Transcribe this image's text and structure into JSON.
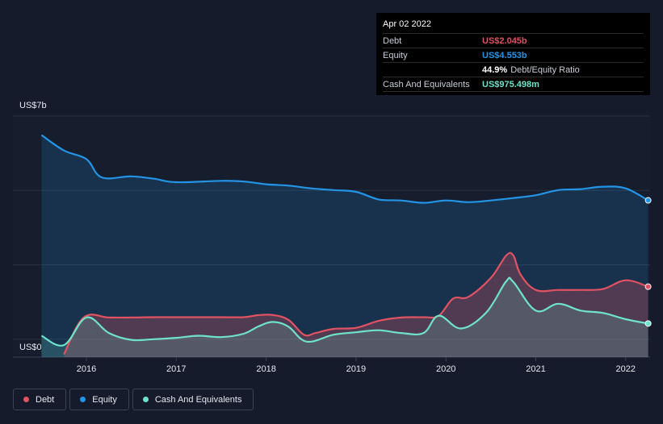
{
  "tooltip": {
    "date": "Apr 02 2022",
    "debt_label": "Debt",
    "debt_value": "US$2.045b",
    "equity_label": "Equity",
    "equity_value": "US$4.553b",
    "ratio_value": "44.9%",
    "ratio_label": "Debt/Equity Ratio",
    "cash_label": "Cash And Equivalents",
    "cash_value": "US$975.498m"
  },
  "colors": {
    "debt": "#e15362",
    "equity": "#2394e6",
    "cash": "#6ee3c9",
    "background": "#151b2b",
    "grid": "#2a3244"
  },
  "chart_data": {
    "type": "area",
    "ylim": [
      0,
      7
    ],
    "y_unit": "US$ billions",
    "y_ticks_labeled": [
      {
        "value": 7,
        "label": "US$7b"
      },
      {
        "value": 0,
        "label": "US$0"
      }
    ],
    "xlim": [
      2015.5,
      2022.25
    ],
    "x_ticks": [
      2016,
      2017,
      2018,
      2019,
      2020,
      2021,
      2022
    ],
    "x_tick_labels": [
      "2016",
      "2017",
      "2018",
      "2019",
      "2020",
      "2021",
      "2022"
    ],
    "grid": "horizontal",
    "legend_position": "bottom-left",
    "series": [
      {
        "name": "Debt",
        "x": [
          2015.75,
          2015.97,
          2016.25,
          2016.5,
          2016.75,
          2017.0,
          2017.25,
          2017.5,
          2017.75,
          2017.92,
          2018.08,
          2018.25,
          2018.42,
          2018.55,
          2018.75,
          2019.0,
          2019.25,
          2019.5,
          2019.75,
          2019.92,
          2020.08,
          2020.25,
          2020.5,
          2020.67,
          2020.75,
          2020.83,
          2021.0,
          2021.25,
          2021.5,
          2021.75,
          2022.0,
          2022.25
        ],
        "values": [
          0.08,
          1.15,
          1.15,
          1.15,
          1.16,
          1.16,
          1.16,
          1.16,
          1.16,
          1.22,
          1.22,
          1.08,
          0.65,
          0.7,
          0.82,
          0.85,
          1.05,
          1.15,
          1.16,
          1.2,
          1.7,
          1.75,
          2.3,
          2.95,
          2.95,
          2.4,
          1.95,
          1.95,
          1.95,
          1.98,
          2.23,
          2.045
        ]
      },
      {
        "name": "Equity",
        "x": [
          2015.5,
          2015.75,
          2016.0,
          2016.17,
          2016.5,
          2016.75,
          2017.0,
          2017.5,
          2017.75,
          2018.0,
          2018.25,
          2018.5,
          2018.75,
          2019.0,
          2019.25,
          2019.5,
          2019.75,
          2020.0,
          2020.25,
          2020.5,
          2020.75,
          2021.0,
          2021.25,
          2021.5,
          2021.75,
          2022.0,
          2022.25
        ],
        "values": [
          6.45,
          6.0,
          5.75,
          5.22,
          5.25,
          5.18,
          5.08,
          5.12,
          5.1,
          5.02,
          4.98,
          4.9,
          4.85,
          4.8,
          4.58,
          4.55,
          4.48,
          4.55,
          4.5,
          4.55,
          4.62,
          4.7,
          4.85,
          4.88,
          4.95,
          4.9,
          4.553
        ]
      },
      {
        "name": "Cash And Equivalents",
        "x": [
          2015.5,
          2015.75,
          2016.0,
          2016.25,
          2016.5,
          2016.75,
          2017.0,
          2017.25,
          2017.5,
          2017.75,
          2017.92,
          2018.08,
          2018.25,
          2018.45,
          2018.75,
          2019.0,
          2019.25,
          2019.5,
          2019.75,
          2019.92,
          2020.17,
          2020.45,
          2020.67,
          2020.75,
          2021.0,
          2021.25,
          2021.5,
          2021.75,
          2022.0,
          2022.25
        ],
        "values": [
          0.62,
          0.35,
          1.15,
          0.7,
          0.5,
          0.52,
          0.56,
          0.62,
          0.58,
          0.68,
          0.9,
          1.02,
          0.88,
          0.45,
          0.65,
          0.72,
          0.78,
          0.7,
          0.7,
          1.2,
          0.83,
          1.3,
          2.2,
          2.18,
          1.35,
          1.55,
          1.35,
          1.28,
          1.1,
          0.975
        ]
      }
    ]
  }
}
